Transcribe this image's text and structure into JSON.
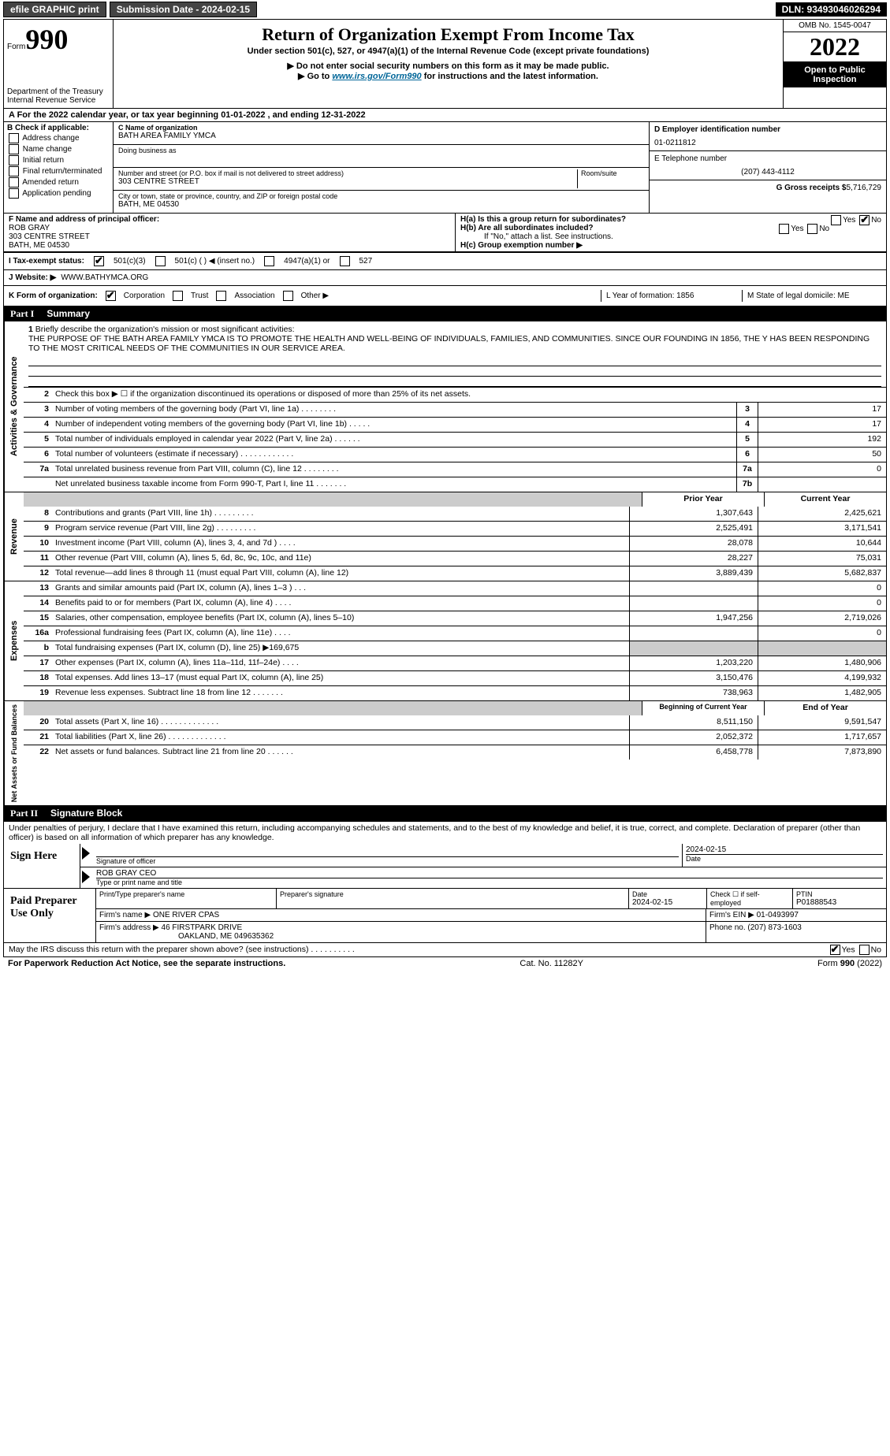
{
  "topbar": {
    "efile": "efile GRAPHIC print",
    "submission": "Submission Date - 2024-02-15",
    "dln": "DLN: 93493046026294"
  },
  "header": {
    "form_prefix": "Form",
    "form_no": "990",
    "title": "Return of Organization Exempt From Income Tax",
    "subtitle": "Under section 501(c), 527, or 4947(a)(1) of the Internal Revenue Code (except private foundations)",
    "note1": "▶ Do not enter social security numbers on this form as it may be made public.",
    "note2_pre": "▶ Go to ",
    "note2_link": "www.irs.gov/Form990",
    "note2_post": " for instructions and the latest information.",
    "dept": "Department of the Treasury",
    "irs": "Internal Revenue Service",
    "omb": "OMB No. 1545-0047",
    "year": "2022",
    "open": "Open to Public Inspection"
  },
  "rowA": "A For the 2022 calendar year, or tax year beginning 01-01-2022     , and ending 12-31-2022",
  "colB": {
    "label": "B Check if applicable:",
    "items": [
      "Address change",
      "Name change",
      "Initial return",
      "Final return/terminated",
      "Amended return",
      "Application pending"
    ]
  },
  "colC": {
    "name_label": "C Name of organization",
    "name": "BATH AREA FAMILY YMCA",
    "dba_label": "Doing business as",
    "addr_label": "Number and street (or P.O. box if mail is not delivered to street address)",
    "room_label": "Room/suite",
    "addr": "303 CENTRE STREET",
    "city_label": "City or town, state or province, country, and ZIP or foreign postal code",
    "city": "BATH, ME  04530"
  },
  "colD": {
    "ein_label": "D Employer identification number",
    "ein": "01-0211812",
    "phone_label": "E Telephone number",
    "phone": "(207) 443-4112",
    "gross_label": "G Gross receipts $",
    "gross": "5,716,729"
  },
  "rowF": {
    "label": "F  Name and address of principal officer:",
    "name": "ROB GRAY",
    "addr1": "303 CENTRE STREET",
    "addr2": "BATH, ME  04530"
  },
  "rowH": {
    "ha": "H(a)  Is this a group return for subordinates?",
    "hb": "H(b)  Are all subordinates included?",
    "hb_note": "If \"No,\" attach a list. See instructions.",
    "hc": "H(c)  Group exemption number ▶"
  },
  "rowI": {
    "label": "I   Tax-exempt status:",
    "o1": "501(c)(3)",
    "o2": "501(c) (   ) ◀ (insert no.)",
    "o3": "4947(a)(1) or",
    "o4": "527"
  },
  "rowJ": {
    "label": "J   Website: ▶",
    "val": "WWW.BATHYMCA.ORG"
  },
  "rowK": {
    "label": "K Form of organization:",
    "opts": [
      "Corporation",
      "Trust",
      "Association",
      "Other ▶"
    ],
    "L": "L Year of formation: 1856",
    "M": "M State of legal domicile: ME"
  },
  "part1": {
    "title": "Part I",
    "name": "Summary"
  },
  "gov": {
    "l1_label": "Briefly describe the organization's mission or most significant activities:",
    "l1_text": "THE PURPOSE OF THE BATH AREA FAMILY YMCA IS TO PROMOTE THE HEALTH AND WELL-BEING OF INDIVIDUALS, FAMILIES, AND COMMUNITIES. SINCE OUR FOUNDING IN 1856, THE Y HAS BEEN RESPONDING TO THE MOST CRITICAL NEEDS OF THE COMMUNITIES IN OUR SERVICE AREA.",
    "l2": "Check this box ▶ ☐  if the organization discontinued its operations or disposed of more than 25% of its net assets.",
    "l3": "Number of voting members of the governing body (Part VI, line 1a)   .    .    .    .    .    .    .    .",
    "l3v": "17",
    "l4": "Number of independent voting members of the governing body (Part VI, line 1b)   .    .    .    .    .",
    "l4v": "17",
    "l5": "Total number of individuals employed in calendar year 2022 (Part V, line 2a)   .    .    .    .    .    .",
    "l5v": "192",
    "l6": "Total number of volunteers (estimate if necessary)    .    .    .    .    .    .    .    .    .    .    .    .",
    "l6v": "50",
    "l7a": "Total unrelated business revenue from Part VIII, column (C), line 12   .    .    .    .    .    .    .    .",
    "l7av": "0",
    "l7b": "Net unrelated business taxable income from Form 990-T, Part I, line 11   .    .    .    .    .    .    .",
    "l7bv": ""
  },
  "rev": {
    "hdr_prior": "Prior Year",
    "hdr_curr": "Current Year",
    "rows": [
      {
        "n": "8",
        "d": "Contributions and grants (Part VIII, line 1h)   .    .    .    .    .    .    .    .    .",
        "p": "1,307,643",
        "c": "2,425,621"
      },
      {
        "n": "9",
        "d": "Program service revenue (Part VIII, line 2g)   .    .    .    .    .    .    .    .    .",
        "p": "2,525,491",
        "c": "3,171,541"
      },
      {
        "n": "10",
        "d": "Investment income (Part VIII, column (A), lines 3, 4, and 7d )   .    .    .    .",
        "p": "28,078",
        "c": "10,644"
      },
      {
        "n": "11",
        "d": "Other revenue (Part VIII, column (A), lines 5, 6d, 8c, 9c, 10c, and 11e)",
        "p": "28,227",
        "c": "75,031"
      },
      {
        "n": "12",
        "d": "Total revenue—add lines 8 through 11 (must equal Part VIII, column (A), line 12)",
        "p": "3,889,439",
        "c": "5,682,837"
      }
    ]
  },
  "exp": {
    "rows": [
      {
        "n": "13",
        "d": "Grants and similar amounts paid (Part IX, column (A), lines 1–3 )   .    .    .",
        "p": "",
        "c": "0"
      },
      {
        "n": "14",
        "d": "Benefits paid to or for members (Part IX, column (A), line 4)   .    .    .    .",
        "p": "",
        "c": "0"
      },
      {
        "n": "15",
        "d": "Salaries, other compensation, employee benefits (Part IX, column (A), lines 5–10)",
        "p": "1,947,256",
        "c": "2,719,026"
      },
      {
        "n": "16a",
        "d": "Professional fundraising fees (Part IX, column (A), line 11e)   .    .    .    .",
        "p": "",
        "c": "0"
      },
      {
        "n": "b",
        "d": "Total fundraising expenses (Part IX, column (D), line 25) ▶169,675",
        "p": "",
        "c": "",
        "shade": true
      },
      {
        "n": "17",
        "d": "Other expenses (Part IX, column (A), lines 11a–11d, 11f–24e)   .    .    .    .",
        "p": "1,203,220",
        "c": "1,480,906"
      },
      {
        "n": "18",
        "d": "Total expenses. Add lines 13–17 (must equal Part IX, column (A), line 25)",
        "p": "3,150,476",
        "c": "4,199,932"
      },
      {
        "n": "19",
        "d": "Revenue less expenses. Subtract line 18 from line 12   .    .    .    .    .    .    .",
        "p": "738,963",
        "c": "1,482,905"
      }
    ]
  },
  "net": {
    "hdr_beg": "Beginning of Current Year",
    "hdr_end": "End of Year",
    "rows": [
      {
        "n": "20",
        "d": "Total assets (Part X, line 16)   .    .    .    .    .    .    .    .    .    .    .    .    .",
        "p": "8,511,150",
        "c": "9,591,547"
      },
      {
        "n": "21",
        "d": "Total liabilities (Part X, line 26)   .    .    .    .    .    .    .    .    .    .    .    .    .",
        "p": "2,052,372",
        "c": "1,717,657"
      },
      {
        "n": "22",
        "d": "Net assets or fund balances. Subtract line 21 from line 20   .    .    .    .    .    .",
        "p": "6,458,778",
        "c": "7,873,890"
      }
    ]
  },
  "part2": {
    "title": "Part II",
    "name": "Signature Block"
  },
  "penalties": "Under penalties of perjury, I declare that I have examined this return, including accompanying schedules and statements, and to the best of my knowledge and belief, it is true, correct, and complete. Declaration of preparer (other than officer) is based on all information of which preparer has any knowledge.",
  "sign": {
    "label": "Sign Here",
    "sig_of": "Signature of officer",
    "date": "2024-02-15",
    "date_lbl": "Date",
    "name": "ROB GRAY CEO",
    "name_lbl": "Type or print name and title"
  },
  "prep": {
    "label": "Paid Preparer Use Only",
    "h1": "Print/Type preparer's name",
    "h2": "Preparer's signature",
    "h3": "Date",
    "h3v": "2024-02-15",
    "h4": "Check ☐ if self-employed",
    "h5": "PTIN",
    "h5v": "P01888543",
    "firm_lbl": "Firm's name    ▶",
    "firm": "ONE RIVER CPAS",
    "ein_lbl": "Firm's EIN ▶",
    "ein": "01-0493997",
    "addr_lbl": "Firm's address ▶",
    "addr1": "46 FIRSTPARK DRIVE",
    "addr2": "OAKLAND, ME  049635362",
    "phone_lbl": "Phone no.",
    "phone": "(207) 873-1603"
  },
  "discuss": "May the IRS discuss this return with the preparer shown above? (see instructions)    .    .    .    .    .    .    .    .    .    .",
  "footer": {
    "left": "For Paperwork Reduction Act Notice, see the separate instructions.",
    "mid": "Cat. No. 11282Y",
    "right_pre": "Form ",
    "right_no": "990",
    "right_post": " (2022)"
  },
  "side_labels": {
    "gov": "Activities & Governance",
    "rev": "Revenue",
    "exp": "Expenses",
    "net": "Net Assets or Fund Balances"
  }
}
